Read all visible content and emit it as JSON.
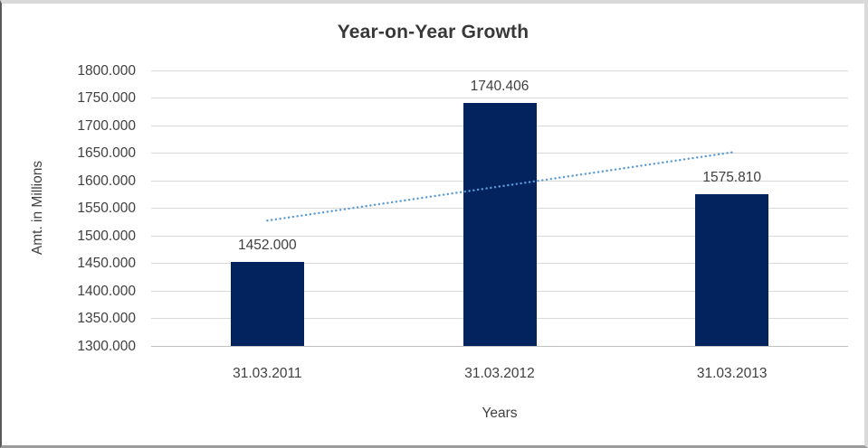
{
  "chart_data": {
    "type": "bar",
    "title": "Year-on-Year Growth",
    "xlabel": "Years",
    "ylabel": "Amt. in Millions",
    "categories": [
      "31.03.2011",
      "31.03.2012",
      "31.03.2013"
    ],
    "values": [
      1452.0,
      1740.406,
      1575.81
    ],
    "value_labels": [
      "1452.000",
      "1740.406",
      "1575.810"
    ],
    "ylim": [
      1300,
      1800
    ],
    "ytick_step": 50,
    "ytick_labels": [
      "1800.000",
      "1750.000",
      "1700.000",
      "1650.000",
      "1600.000",
      "1550.000",
      "1500.000",
      "1450.000",
      "1400.000",
      "1350.000",
      "1300.000"
    ],
    "grid": true,
    "legend_position": "none",
    "bar_color": "#03235f",
    "gridline_color": "#d9d9d9",
    "text_color": "#3f3f3f",
    "trendline": {
      "type": "linear",
      "style": "dotted",
      "color": "#5b9bd5",
      "start_value": 1527.5,
      "end_value": 1651.3
    }
  }
}
